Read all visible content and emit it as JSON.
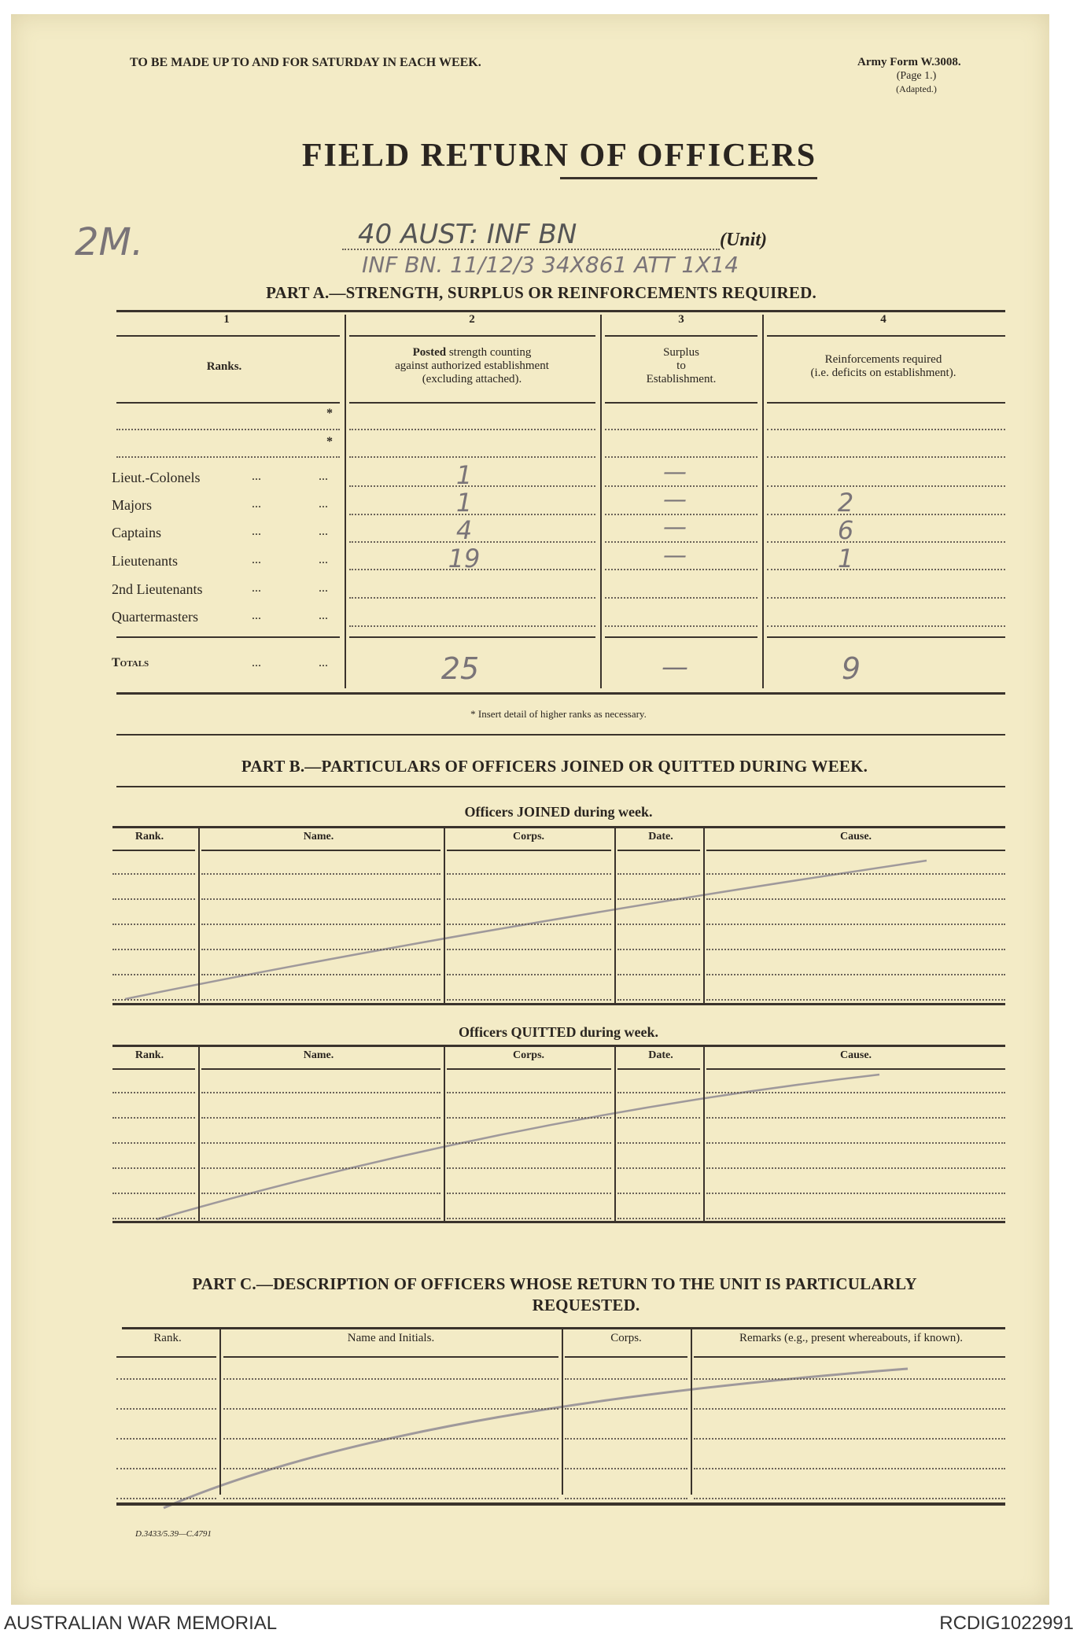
{
  "header": {
    "instruction": "TO BE MADE UP TO AND FOR SATURDAY IN EACH WEEK.",
    "form_no": "Army Form W.3008.",
    "page": "(Page 1.)",
    "adapted": "(Adapted.)",
    "title": "FIELD RETURN OF OFFICERS"
  },
  "handwritten": {
    "margin_note": "2M.",
    "unit": "40 AUST: INF BN",
    "unit_label": "(Unit)",
    "second_line": "INF BN. 11/12/3   34X861   ATT 1X14"
  },
  "part_a": {
    "heading": "PART A.—STRENGTH, SURPLUS OR REINFORCEMENTS REQUIRED.",
    "col_numbers": [
      "1",
      "2",
      "3",
      "4"
    ],
    "col_headers": {
      "ranks": "Ranks.",
      "posted_bold": "Posted",
      "posted_rest": " strength counting",
      "posted_2": "against authorized establishment",
      "posted_3": "(excluding attached).",
      "surplus_1": "Surplus",
      "surplus_2": "to",
      "surplus_3": "Establishment.",
      "reinf_1": "Reinforcements required",
      "reinf_2": "(i.e. deficits on establishment)."
    },
    "star": "*",
    "dots": "...",
    "rows": [
      {
        "rank": "Lieut.-Colonels",
        "posted": "1",
        "surplus": "—",
        "reinf": ""
      },
      {
        "rank": "Majors",
        "posted": "1",
        "surplus": "—",
        "reinf": "2"
      },
      {
        "rank": "Captains",
        "posted": "4",
        "surplus": "—",
        "reinf": "6"
      },
      {
        "rank": "Lieutenants",
        "posted": "19",
        "surplus": "—",
        "reinf": "1"
      },
      {
        "rank": "2nd Lieutenants",
        "posted": "",
        "surplus": "",
        "reinf": ""
      },
      {
        "rank": "Quartermasters",
        "posted": "",
        "surplus": "",
        "reinf": ""
      }
    ],
    "totals": {
      "label": "Totals",
      "posted": "25",
      "surplus": "—",
      "reinf": "9"
    },
    "footnote": "* Insert detail of higher ranks as necessary."
  },
  "part_b": {
    "heading": "PART B.—PARTICULARS OF OFFICERS JOINED OR QUITTED DURING WEEK.",
    "joined_title": "Officers JOINED during week.",
    "quitted_title": "Officers QUITTED during week.",
    "columns": [
      "Rank.",
      "Name.",
      "Corps.",
      "Date.",
      "Cause."
    ]
  },
  "part_c": {
    "heading_1": "PART C.—DESCRIPTION OF OFFICERS WHOSE RETURN TO THE UNIT IS PARTICULARLY",
    "heading_2": "REQUESTED.",
    "columns": [
      "Rank.",
      "Name and Initials.",
      "Corps.",
      "Remarks (e.g., present whereabouts, if known)."
    ]
  },
  "print_code": "D.3433/5.39—C.4791",
  "footer": {
    "left": "AUSTRALIAN WAR MEMORIAL",
    "right": "RCDIG1022991"
  },
  "colors": {
    "paper": "#f3ebc6",
    "ink": "#2a2520",
    "pencil": "#7a7478"
  }
}
